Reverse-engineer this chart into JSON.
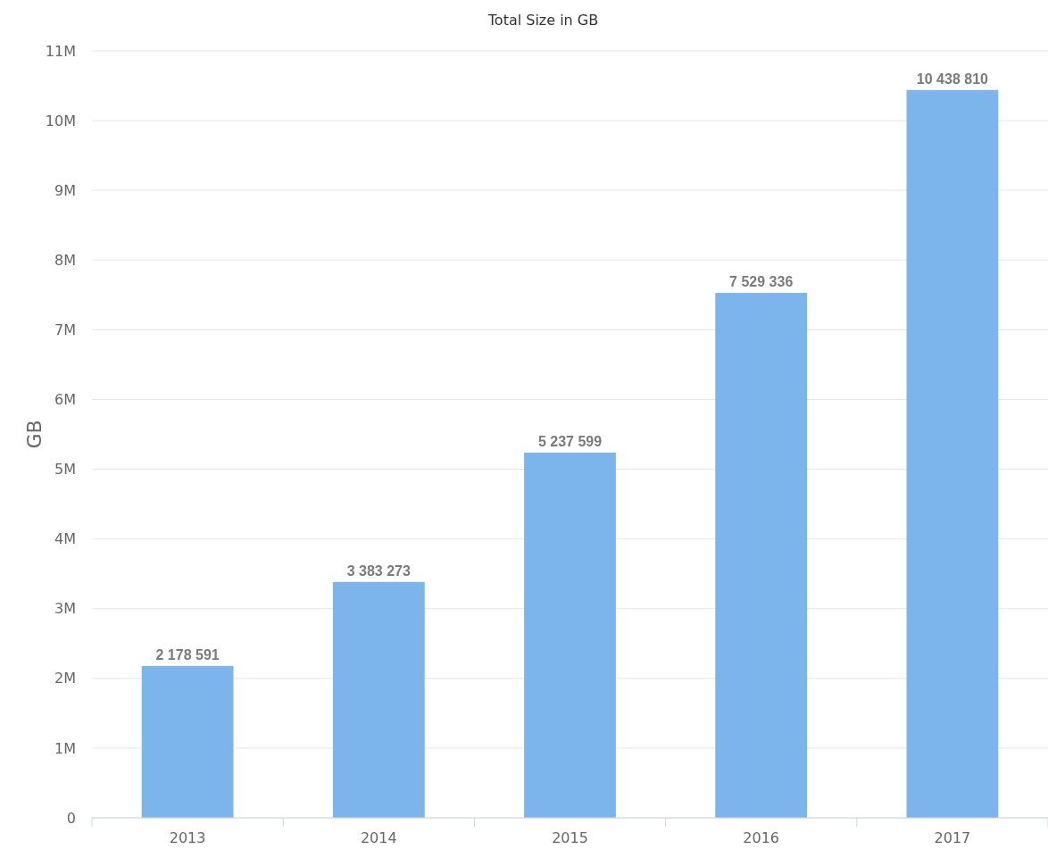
{
  "chart_data": {
    "type": "bar",
    "title": "Total Size in GB",
    "ylabel": "GB",
    "categories": [
      "2013",
      "2014",
      "2015",
      "2016",
      "2017"
    ],
    "values": [
      2178591,
      3383273,
      5237599,
      7529336,
      10438810
    ],
    "value_labels": [
      "2 178 591",
      "3 383 273",
      "5 237 599",
      "7 529 336",
      "10 438 810"
    ],
    "color": "#7cb5ec",
    "ylim": [
      0,
      11000000
    ],
    "yticks": [
      {
        "value": 0,
        "label": "0"
      },
      {
        "value": 1000000,
        "label": "1M"
      },
      {
        "value": 2000000,
        "label": "2M"
      },
      {
        "value": 3000000,
        "label": "3M"
      },
      {
        "value": 4000000,
        "label": "4M"
      },
      {
        "value": 5000000,
        "label": "5M"
      },
      {
        "value": 6000000,
        "label": "6M"
      },
      {
        "value": 7000000,
        "label": "7M"
      },
      {
        "value": 8000000,
        "label": "8M"
      },
      {
        "value": 9000000,
        "label": "9M"
      },
      {
        "value": 10000000,
        "label": "10M"
      },
      {
        "value": 11000000,
        "label": "11M"
      }
    ],
    "grid": "y"
  }
}
